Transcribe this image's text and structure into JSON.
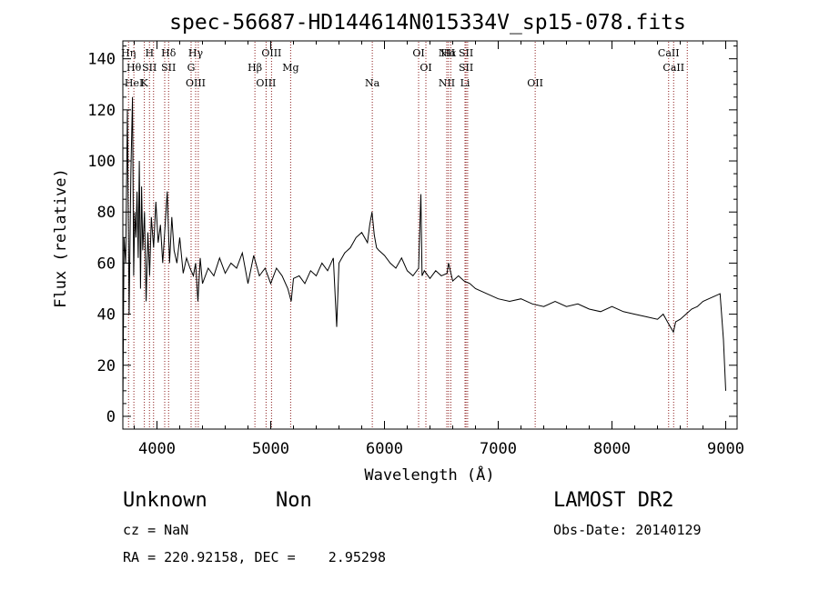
{
  "chart_data": {
    "type": "line",
    "title": "spec-56687-HD144614N015334V_sp15-078.fits",
    "xlabel": "Wavelength (Å)",
    "ylabel": "Flux (relative)",
    "xlim": [
      3700,
      9100
    ],
    "ylim": [
      -5,
      147
    ],
    "xticks": [
      4000,
      5000,
      6000,
      7000,
      8000,
      9000
    ],
    "yticks": [
      0,
      20,
      40,
      60,
      80,
      100,
      120,
      140
    ],
    "grid": false,
    "line_color": "#000000",
    "marker_color": "#8b1a1a",
    "series": [
      {
        "x": [
          3700,
          3710,
          3725,
          3740,
          3755,
          3770,
          3785,
          3795,
          3805,
          3815,
          3825,
          3835,
          3845,
          3855,
          3865,
          3875,
          3890,
          3905,
          3920,
          3935,
          3950,
          3970,
          3990,
          4010,
          4030,
          4050,
          4070,
          4090,
          4110,
          4130,
          4150,
          4175,
          4200,
          4230,
          4260,
          4290,
          4320,
          4340,
          4360,
          4380,
          4400,
          4450,
          4500,
          4550,
          4600,
          4650,
          4700,
          4750,
          4800,
          4850,
          4900,
          4950,
          5000,
          5050,
          5100,
          5150,
          5180,
          5200,
          5250,
          5300,
          5350,
          5400,
          5450,
          5500,
          5550,
          5580,
          5600,
          5650,
          5700,
          5750,
          5800,
          5850,
          5870,
          5890,
          5910,
          5930,
          5950,
          6000,
          6050,
          6100,
          6150,
          6200,
          6250,
          6300,
          6320,
          6330,
          6350,
          6400,
          6450,
          6500,
          6550,
          6563,
          6600,
          6650,
          6700,
          6750,
          6800,
          6900,
          7000,
          7100,
          7200,
          7300,
          7400,
          7500,
          7600,
          7700,
          7800,
          7900,
          8000,
          8100,
          8200,
          8300,
          8400,
          8450,
          8500,
          8540,
          8560,
          8600,
          8650,
          8700,
          8750,
          8800,
          8850,
          8900,
          8950,
          8980,
          9000
        ],
        "y": [
          2,
          70,
          60,
          120,
          40,
          95,
          125,
          55,
          80,
          70,
          88,
          62,
          100,
          50,
          90,
          65,
          80,
          45,
          72,
          55,
          78,
          66,
          84,
          68,
          75,
          60,
          74,
          88,
          60,
          78,
          65,
          60,
          70,
          56,
          62,
          58,
          55,
          60,
          45,
          62,
          52,
          58,
          55,
          62,
          56,
          60,
          58,
          64,
          52,
          63,
          55,
          58,
          52,
          58,
          55,
          50,
          45,
          54,
          55,
          52,
          57,
          55,
          60,
          57,
          62,
          35,
          60,
          64,
          66,
          70,
          72,
          68,
          75,
          80,
          71,
          66,
          65,
          63,
          60,
          58,
          62,
          57,
          55,
          58,
          87,
          55,
          57,
          54,
          57,
          55,
          56,
          60,
          53,
          55,
          53,
          52,
          50,
          48,
          46,
          45,
          46,
          44,
          43,
          45,
          43,
          44,
          42,
          41,
          43,
          41,
          40,
          39,
          38,
          40,
          36,
          33,
          37,
          38,
          40,
          42,
          43,
          45,
          46,
          47,
          48,
          30,
          10
        ]
      }
    ],
    "line_markers": [
      {
        "x": 3750,
        "labels": [
          "Hη"
        ]
      },
      {
        "x": 3797,
        "labels": [
          "Hθ",
          "HeI"
        ]
      },
      {
        "x": 3889,
        "labels": [
          "K"
        ]
      },
      {
        "x": 3934,
        "labels": [
          "H",
          "SII"
        ]
      },
      {
        "x": 3970,
        "labels": []
      },
      {
        "x": 4068,
        "labels": []
      },
      {
        "x": 4102,
        "labels": [
          "Hδ",
          "SII"
        ]
      },
      {
        "x": 4300,
        "labels": [
          "G"
        ]
      },
      {
        "x": 4340,
        "labels": [
          "OIII",
          "Hγ"
        ]
      },
      {
        "x": 4363,
        "labels": []
      },
      {
        "x": 4861,
        "labels": [
          "Hβ"
        ]
      },
      {
        "x": 4959,
        "labels": [
          "OIII"
        ]
      },
      {
        "x": 5007,
        "labels": [
          "OIII"
        ]
      },
      {
        "x": 5175,
        "labels": [
          "Mg"
        ]
      },
      {
        "x": 5893,
        "labels": [
          "Na"
        ]
      },
      {
        "x": 6300,
        "labels": [
          "OI"
        ]
      },
      {
        "x": 6364,
        "labels": [
          "OI"
        ]
      },
      {
        "x": 6548,
        "labels": [
          "NII",
          "NII"
        ]
      },
      {
        "x": 6563,
        "labels": [
          "Hα"
        ]
      },
      {
        "x": 6583,
        "labels": []
      },
      {
        "x": 6708,
        "labels": [
          "Li"
        ]
      },
      {
        "x": 6717,
        "labels": [
          "SII",
          "SII"
        ]
      },
      {
        "x": 6731,
        "labels": []
      },
      {
        "x": 7325,
        "labels": [
          "OII"
        ]
      },
      {
        "x": 8498,
        "labels": [
          "CaII"
        ]
      },
      {
        "x": 8542,
        "labels": [
          "CaII"
        ]
      },
      {
        "x": 8662,
        "labels": []
      }
    ]
  },
  "info": {
    "class_label": "Unknown",
    "subclass_label": "Non",
    "survey_label": "LAMOST DR2",
    "cz_text": "cz = NaN",
    "obs_date_text": "Obs-Date: 20140129",
    "coords_text": "RA = 220.92158, DEC =    2.95298"
  }
}
